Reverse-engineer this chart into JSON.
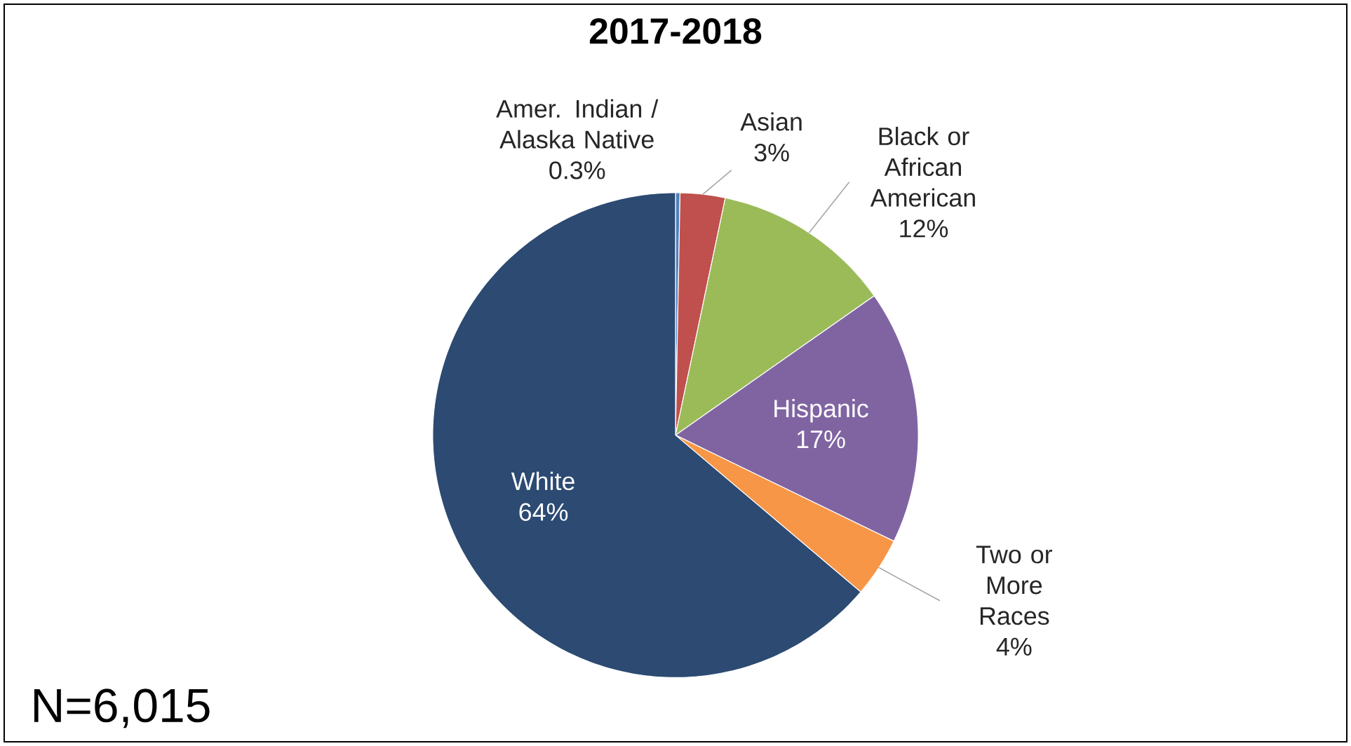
{
  "chart_data": {
    "type": "pie",
    "title": "2017-2018",
    "categories": [
      "Amer. Indian / Alaska Native",
      "Asian",
      "Black or African American",
      "Hispanic",
      "Two or More Races",
      "White"
    ],
    "values": [
      0.3,
      3,
      12,
      17,
      4,
      64
    ],
    "value_labels": [
      "0.3%",
      "3%",
      "12%",
      "17%",
      "4%",
      "64%"
    ],
    "colors": [
      "#4f81bd",
      "#c0504d",
      "#9bbb59",
      "#8064a2",
      "#f79646",
      "#2c4a72"
    ],
    "annotations": [
      "N=6,015"
    ]
  }
}
